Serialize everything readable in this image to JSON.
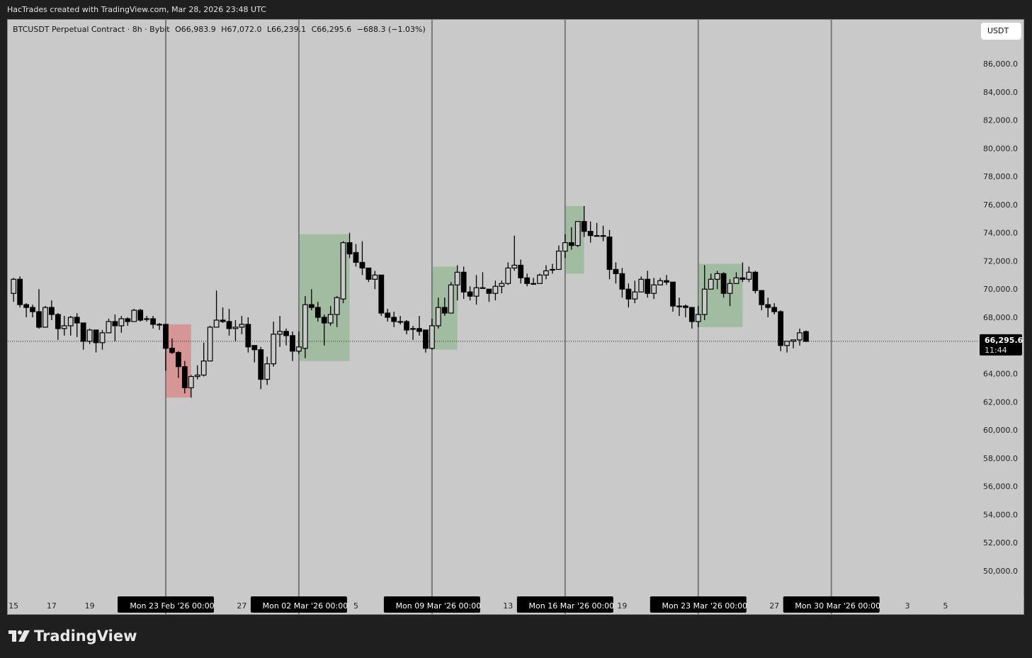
{
  "header": {
    "caption": "HacTrades created with TradingView.com, Mar 28, 2026 23:48 UTC"
  },
  "legend": {
    "symbol": "BTCUSDT Perpetual Contract · 8h · Bybit",
    "open": "O66,983.9",
    "high": "H67,072.0",
    "low": "L66,239.1",
    "close": "C66,295.6",
    "change": "−688.3 (−1.03%)"
  },
  "currency_button": "USDT",
  "last_price": {
    "label": "66,295.6",
    "countdown": "11:44",
    "value": 66295.6
  },
  "footer": {
    "brand": "TradingView"
  },
  "colors": {
    "background": "#c9c9c9",
    "up_body": "#c9c9c9",
    "down_body": "#000000",
    "zone_red": "#d69696",
    "zone_green": "#a2bca2",
    "separator": "#7a7a7a"
  },
  "chart_data": {
    "type": "candlestick",
    "interval": "8h",
    "ylim": [
      48000,
      88000
    ],
    "y_ticks": [
      "86,000.0",
      "84,000.0",
      "82,000.0",
      "80,000.0",
      "78,000.0",
      "76,000.0",
      "74,000.0",
      "72,000.0",
      "70,000.0",
      "68,000.0",
      "64,000.0",
      "62,000.0",
      "60,000.0",
      "58,000.0",
      "56,000.0",
      "54,000.0",
      "52,000.0",
      "50,000.0"
    ],
    "x_ticks": [
      {
        "label": "15",
        "time": "2026-02-15 00:00",
        "highlight": false
      },
      {
        "label": "17",
        "time": "2026-02-17 00:00",
        "highlight": false
      },
      {
        "label": "19",
        "time": "2026-02-19 00:00",
        "highlight": false
      },
      {
        "label": "Mon 23 Feb '26   00:00",
        "time": "2026-02-23 00:00",
        "highlight": true
      },
      {
        "label": "27",
        "time": "2026-02-27 00:00",
        "highlight": false
      },
      {
        "label": "Mon 02 Mar '26   00:00",
        "time": "2026-03-02 00:00",
        "highlight": true
      },
      {
        "label": "5",
        "time": "2026-03-05 00:00",
        "highlight": false
      },
      {
        "label": "Mon 09 Mar '26   00:00",
        "time": "2026-03-09 00:00",
        "highlight": true
      },
      {
        "label": "13",
        "time": "2026-03-13 00:00",
        "highlight": false
      },
      {
        "label": "Mon 16 Mar '26   00:00",
        "time": "2026-03-16 00:00",
        "highlight": true
      },
      {
        "label": "19",
        "time": "2026-03-19 00:00",
        "highlight": false
      },
      {
        "label": "Mon 23 Mar '26   00:00",
        "time": "2026-03-23 00:00",
        "highlight": true
      },
      {
        "label": "27",
        "time": "2026-03-27 00:00",
        "highlight": false
      },
      {
        "label": "Mon 30 Mar '26   00:00",
        "time": "2026-03-30 00:00",
        "highlight": true
      },
      {
        "label": "3",
        "time": "2026-04-03 00:00",
        "highlight": false
      },
      {
        "label": "5",
        "time": "2026-04-05 00:00",
        "highlight": false
      }
    ],
    "week_separators": [
      "2026-02-23 00:00",
      "2026-03-02 00:00",
      "2026-03-09 00:00",
      "2026-03-16 00:00",
      "2026-03-23 00:00",
      "2026-03-30 00:00"
    ],
    "zones": [
      {
        "color": "red",
        "start": "2026-02-23 00:00",
        "end": "2026-02-24 08:00",
        "top": 67500,
        "bottom": 62300
      },
      {
        "color": "green",
        "start": "2026-03-02 00:00",
        "end": "2026-03-04 16:00",
        "top": 73900,
        "bottom": 64900
      },
      {
        "color": "green",
        "start": "2026-03-09 00:00",
        "end": "2026-03-10 08:00",
        "top": 71600,
        "bottom": 65700
      },
      {
        "color": "green",
        "start": "2026-03-16 00:00",
        "end": "2026-03-17 00:00",
        "top": 75900,
        "bottom": 71100
      },
      {
        "color": "green",
        "start": "2026-03-23 00:00",
        "end": "2026-03-25 08:00",
        "top": 71800,
        "bottom": 67300
      }
    ],
    "columns": [
      "time",
      "open",
      "high",
      "low",
      "close"
    ],
    "candles": [
      [
        "2026-02-15 00:00",
        69700,
        70800,
        69100,
        70700
      ],
      [
        "2026-02-15 08:00",
        70700,
        70900,
        68700,
        68900
      ],
      [
        "2026-02-15 16:00",
        68900,
        69000,
        68000,
        68700
      ],
      [
        "2026-02-16 00:00",
        68700,
        68900,
        68000,
        68400
      ],
      [
        "2026-02-16 08:00",
        68400,
        70000,
        67200,
        67300
      ],
      [
        "2026-02-16 16:00",
        67300,
        68800,
        67300,
        68700
      ],
      [
        "2026-02-17 00:00",
        68700,
        69200,
        67800,
        68200
      ],
      [
        "2026-02-17 08:00",
        68200,
        68300,
        66400,
        67200
      ],
      [
        "2026-02-17 16:00",
        67200,
        68100,
        66700,
        67400
      ],
      [
        "2026-02-18 00:00",
        67400,
        68100,
        66700,
        68000
      ],
      [
        "2026-02-18 08:00",
        68000,
        68300,
        66600,
        67600
      ],
      [
        "2026-02-18 16:00",
        67600,
        67600,
        65700,
        66300
      ],
      [
        "2026-02-19 00:00",
        66300,
        67200,
        66100,
        67100
      ],
      [
        "2026-02-19 08:00",
        67100,
        67100,
        65500,
        66200
      ],
      [
        "2026-02-19 16:00",
        66200,
        67100,
        65700,
        66900
      ],
      [
        "2026-02-20 00:00",
        66900,
        67900,
        66900,
        67700
      ],
      [
        "2026-02-20 08:00",
        67700,
        68200,
        66300,
        67400
      ],
      [
        "2026-02-20 16:00",
        67400,
        68100,
        66900,
        67900
      ],
      [
        "2026-02-21 00:00",
        67900,
        68000,
        67400,
        67700
      ],
      [
        "2026-02-21 08:00",
        67700,
        68600,
        67700,
        68500
      ],
      [
        "2026-02-21 16:00",
        68500,
        68600,
        67700,
        67800
      ],
      [
        "2026-02-22 00:00",
        67900,
        68100,
        67700,
        67900
      ],
      [
        "2026-02-22 08:00",
        67900,
        68100,
        67200,
        67500
      ],
      [
        "2026-02-22 16:00",
        67500,
        67600,
        67100,
        67500
      ],
      [
        "2026-02-23 00:00",
        67500,
        67500,
        64200,
        65800
      ],
      [
        "2026-02-23 08:00",
        65800,
        66500,
        65400,
        65500
      ],
      [
        "2026-02-23 16:00",
        65500,
        65600,
        63700,
        64500
      ],
      [
        "2026-02-24 00:00",
        64500,
        64900,
        62600,
        63000
      ],
      [
        "2026-02-24 08:00",
        63000,
        63900,
        62300,
        63800
      ],
      [
        "2026-02-24 16:00",
        63800,
        64600,
        63600,
        63900
      ],
      [
        "2026-02-25 00:00",
        63900,
        66200,
        63800,
        64900
      ],
      [
        "2026-02-25 08:00",
        64900,
        67400,
        64900,
        67300
      ],
      [
        "2026-02-25 16:00",
        67300,
        69900,
        67300,
        67800
      ],
      [
        "2026-02-26 00:00",
        67800,
        68700,
        67600,
        67700
      ],
      [
        "2026-02-26 08:00",
        67700,
        68600,
        66700,
        67200
      ],
      [
        "2026-02-26 16:00",
        67200,
        67800,
        66300,
        67300
      ],
      [
        "2026-02-27 00:00",
        67300,
        68100,
        66800,
        67500
      ],
      [
        "2026-02-27 08:00",
        67500,
        68000,
        65500,
        65900
      ],
      [
        "2026-02-27 16:00",
        66000,
        66000,
        64800,
        65700
      ],
      [
        "2026-02-28 00:00",
        65700,
        65900,
        62900,
        63600
      ],
      [
        "2026-02-28 08:00",
        63600,
        65200,
        63200,
        64700
      ],
      [
        "2026-02-28 16:00",
        64700,
        67700,
        64500,
        66800
      ],
      [
        "2026-03-01 00:00",
        66800,
        68100,
        65900,
        67000
      ],
      [
        "2026-03-01 08:00",
        67000,
        67200,
        66000,
        66700
      ],
      [
        "2026-03-01 16:00",
        66700,
        67000,
        64900,
        65600
      ],
      [
        "2026-03-02 00:00",
        65600,
        67000,
        65400,
        65900
      ],
      [
        "2026-03-02 08:00",
        65800,
        69500,
        65100,
        68900
      ],
      [
        "2026-03-02 16:00",
        68900,
        70000,
        68500,
        68700
      ],
      [
        "2026-03-03 00:00",
        68700,
        69100,
        67700,
        68000
      ],
      [
        "2026-03-03 08:00",
        68000,
        68200,
        66000,
        67600
      ],
      [
        "2026-03-03 16:00",
        67600,
        68800,
        67400,
        68200
      ],
      [
        "2026-03-04 00:00",
        68200,
        69500,
        67300,
        69400
      ],
      [
        "2026-03-04 08:00",
        69300,
        73400,
        69000,
        73300
      ],
      [
        "2026-03-04 16:00",
        73300,
        74000,
        72200,
        72500
      ],
      [
        "2026-03-05 00:00",
        72600,
        73200,
        71600,
        71900
      ],
      [
        "2026-03-05 08:00",
        71900,
        73400,
        71000,
        71500
      ],
      [
        "2026-03-05 16:00",
        71500,
        71500,
        70500,
        70700
      ],
      [
        "2026-03-06 00:00",
        70700,
        71300,
        70000,
        71000
      ],
      [
        "2026-03-06 08:00",
        71000,
        71000,
        68100,
        68300
      ],
      [
        "2026-03-06 16:00",
        68300,
        68600,
        67700,
        68000
      ],
      [
        "2026-03-07 00:00",
        68000,
        68400,
        67300,
        67700
      ],
      [
        "2026-03-07 08:00",
        67700,
        68100,
        67500,
        67700
      ],
      [
        "2026-03-07 16:00",
        67700,
        67800,
        66800,
        67100
      ],
      [
        "2026-03-08 00:00",
        67200,
        67400,
        66400,
        67200
      ],
      [
        "2026-03-08 08:00",
        67200,
        68100,
        66700,
        67000
      ],
      [
        "2026-03-08 16:00",
        67100,
        67100,
        65500,
        65800
      ],
      [
        "2026-03-09 00:00",
        65800,
        67900,
        65700,
        67400
      ],
      [
        "2026-03-09 08:00",
        67400,
        69400,
        67200,
        68700
      ],
      [
        "2026-03-09 16:00",
        68700,
        69400,
        68100,
        68300
      ],
      [
        "2026-03-10 00:00",
        68300,
        70500,
        68300,
        70300
      ],
      [
        "2026-03-10 08:00",
        70300,
        71700,
        69200,
        71200
      ],
      [
        "2026-03-10 16:00",
        71200,
        71600,
        69300,
        69800
      ],
      [
        "2026-03-11 00:00",
        69800,
        70200,
        69200,
        69500
      ],
      [
        "2026-03-11 08:00",
        69500,
        71000,
        68900,
        70100
      ],
      [
        "2026-03-11 16:00",
        70100,
        71200,
        70100,
        70100
      ],
      [
        "2026-03-12 00:00",
        70000,
        70000,
        69100,
        69700
      ],
      [
        "2026-03-12 08:00",
        69700,
        70600,
        69200,
        70200
      ],
      [
        "2026-03-12 16:00",
        70200,
        70600,
        69700,
        70400
      ],
      [
        "2026-03-13 00:00",
        70400,
        71900,
        70300,
        71500
      ],
      [
        "2026-03-13 08:00",
        71500,
        73800,
        71300,
        71700
      ],
      [
        "2026-03-13 16:00",
        71700,
        72100,
        70400,
        70800
      ],
      [
        "2026-03-14 00:00",
        70800,
        71100,
        70200,
        70400
      ],
      [
        "2026-03-14 08:00",
        70400,
        70800,
        70300,
        70400
      ],
      [
        "2026-03-14 16:00",
        70400,
        71100,
        70400,
        71000
      ],
      [
        "2026-03-15 00:00",
        71000,
        71700,
        70700,
        71300
      ],
      [
        "2026-03-15 08:00",
        71400,
        71800,
        71100,
        71400
      ],
      [
        "2026-03-15 16:00",
        71400,
        73100,
        71400,
        72700
      ],
      [
        "2026-03-16 00:00",
        72700,
        73900,
        72200,
        73300
      ],
      [
        "2026-03-16 08:00",
        73300,
        74400,
        72800,
        73100
      ],
      [
        "2026-03-16 16:00",
        73100,
        74800,
        73000,
        74800
      ],
      [
        "2026-03-17 00:00",
        74800,
        75900,
        73700,
        74100
      ],
      [
        "2026-03-17 08:00",
        74100,
        74800,
        73300,
        73800
      ],
      [
        "2026-03-17 16:00",
        73800,
        74700,
        73800,
        73800
      ],
      [
        "2026-03-18 00:00",
        73800,
        74500,
        73400,
        73800
      ],
      [
        "2026-03-18 08:00",
        73700,
        74200,
        70700,
        71400
      ],
      [
        "2026-03-18 16:00",
        71400,
        71900,
        70400,
        71100
      ],
      [
        "2026-03-19 00:00",
        71100,
        71500,
        69400,
        70000
      ],
      [
        "2026-03-19 08:00",
        70000,
        70400,
        68700,
        69300
      ],
      [
        "2026-03-19 16:00",
        69300,
        70600,
        69000,
        69800
      ],
      [
        "2026-03-20 00:00",
        69800,
        70900,
        69800,
        70700
      ],
      [
        "2026-03-20 08:00",
        70700,
        71300,
        69400,
        69700
      ],
      [
        "2026-03-20 16:00",
        69700,
        70800,
        69300,
        70300
      ],
      [
        "2026-03-21 00:00",
        70300,
        70800,
        70300,
        70600
      ],
      [
        "2026-03-21 08:00",
        70600,
        71000,
        70300,
        70500
      ],
      [
        "2026-03-21 16:00",
        70500,
        70500,
        68400,
        68800
      ],
      [
        "2026-03-22 00:00",
        68800,
        69400,
        68100,
        68800
      ],
      [
        "2026-03-22 08:00",
        68800,
        68900,
        68000,
        68700
      ],
      [
        "2026-03-22 16:00",
        68700,
        68700,
        67200,
        67700
      ],
      [
        "2026-03-23 00:00",
        67700,
        68800,
        67300,
        68200
      ],
      [
        "2026-03-23 08:00",
        68200,
        71700,
        67800,
        70000
      ],
      [
        "2026-03-23 16:00",
        70000,
        71100,
        70000,
        70700
      ],
      [
        "2026-03-24 00:00",
        70700,
        71300,
        70000,
        71100
      ],
      [
        "2026-03-24 08:00",
        71100,
        71200,
        69400,
        69700
      ],
      [
        "2026-03-24 16:00",
        69700,
        70700,
        68800,
        70400
      ],
      [
        "2026-03-25 00:00",
        70400,
        71200,
        70400,
        70800
      ],
      [
        "2026-03-25 08:00",
        70800,
        71900,
        70500,
        70700
      ],
      [
        "2026-03-25 16:00",
        70700,
        71600,
        70500,
        71200
      ],
      [
        "2026-03-26 00:00",
        71200,
        71300,
        69700,
        69900
      ],
      [
        "2026-03-26 08:00",
        69900,
        69900,
        68500,
        68900
      ],
      [
        "2026-03-26 16:00",
        68900,
        69400,
        68000,
        68700
      ],
      [
        "2026-03-27 00:00",
        68700,
        69000,
        68200,
        68400
      ],
      [
        "2026-03-27 08:00",
        68400,
        68500,
        65600,
        66000
      ],
      [
        "2026-03-27 16:00",
        66000,
        66300,
        65500,
        66300
      ],
      [
        "2026-03-28 00:00",
        66300,
        66400,
        65800,
        66400
      ],
      [
        "2026-03-28 08:00",
        66400,
        67200,
        66000,
        66900
      ],
      [
        "2026-03-28 16:00",
        66983.9,
        67072.0,
        66239.1,
        66295.6
      ]
    ]
  }
}
